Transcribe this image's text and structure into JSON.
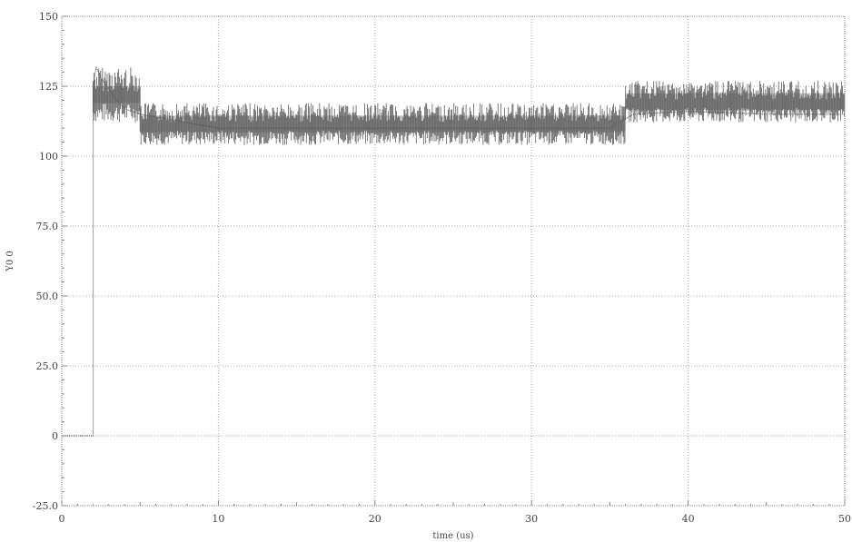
{
  "chart_data": {
    "type": "line",
    "title": "",
    "xlabel": "time (us)",
    "ylabel": "Y0 0",
    "xlim": [
      0,
      50
    ],
    "ylim": [
      -25,
      150
    ],
    "x_ticks": [
      0,
      10,
      20,
      30,
      40,
      50
    ],
    "x_tick_labels": [
      "0",
      "10",
      "20",
      "30",
      "40",
      "50"
    ],
    "y_ticks": [
      -25,
      0,
      25,
      50,
      75,
      100,
      125,
      150
    ],
    "y_tick_labels": [
      "-25.0",
      "0",
      "25.0",
      "50.0",
      "75.0",
      "100",
      "125",
      "150"
    ],
    "grid": true,
    "series": [
      {
        "color": "#555555",
        "points": [
          [
            0,
            0
          ],
          [
            2.0,
            0
          ],
          [
            2.0,
            125
          ],
          [
            2.2,
            132
          ],
          [
            2.5,
            128
          ],
          [
            3.0,
            124
          ],
          [
            3.5,
            120
          ],
          [
            4.0,
            117
          ],
          [
            5.0,
            115
          ],
          [
            10,
            110
          ],
          [
            15,
            110
          ],
          [
            20,
            110
          ],
          [
            25,
            110
          ],
          [
            30,
            110
          ],
          [
            35,
            110
          ],
          [
            36.5,
            115
          ],
          [
            40,
            116
          ],
          [
            45,
            115
          ],
          [
            50,
            115
          ]
        ],
        "noise": [
          {
            "x_from": 2.0,
            "x_to": 5.0,
            "low": 112,
            "high": 132
          },
          {
            "x_from": 5.0,
            "x_to": 36.0,
            "low": 104,
            "high": 119
          },
          {
            "x_from": 36.0,
            "x_to": 50.0,
            "low": 112,
            "high": 127
          }
        ]
      }
    ]
  }
}
